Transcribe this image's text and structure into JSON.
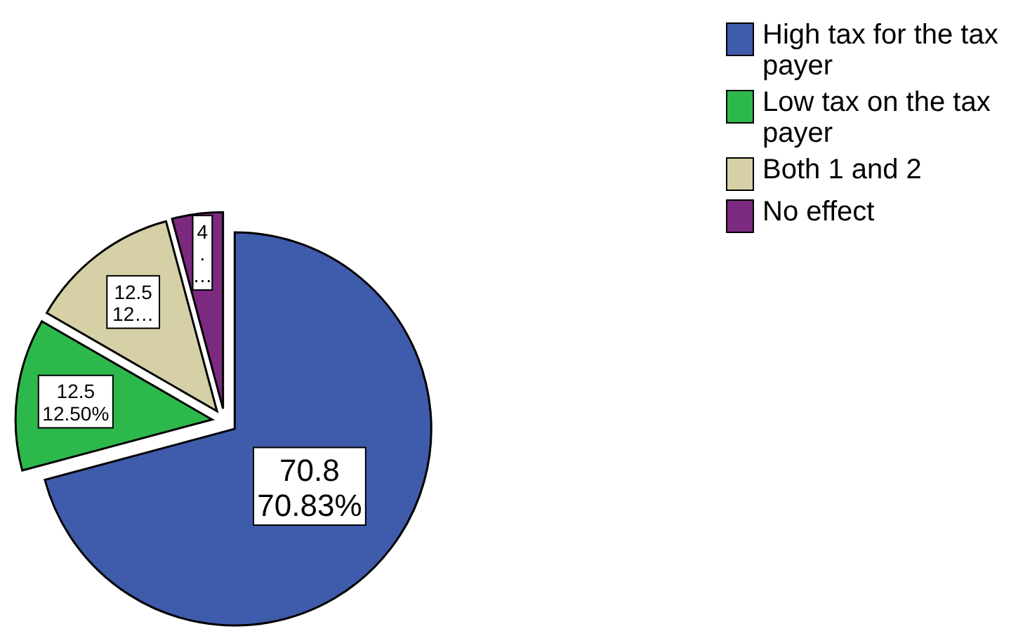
{
  "chart_data": {
    "type": "pie",
    "categories": [
      "High tax for the tax payer",
      "Low tax on the tax payer",
      "Both 1 and 2",
      "No effect"
    ],
    "values": [
      70.83,
      12.5,
      12.5,
      4.17
    ],
    "colors": [
      "#3f5bab",
      "#2db84b",
      "#d6d0a6",
      "#7b2a7f"
    ],
    "value_labels": [
      "70.8\n70.83%",
      "12.5\n12.50%",
      "12.5\n12…",
      "4\n.\n…"
    ],
    "legend": "top right"
  }
}
